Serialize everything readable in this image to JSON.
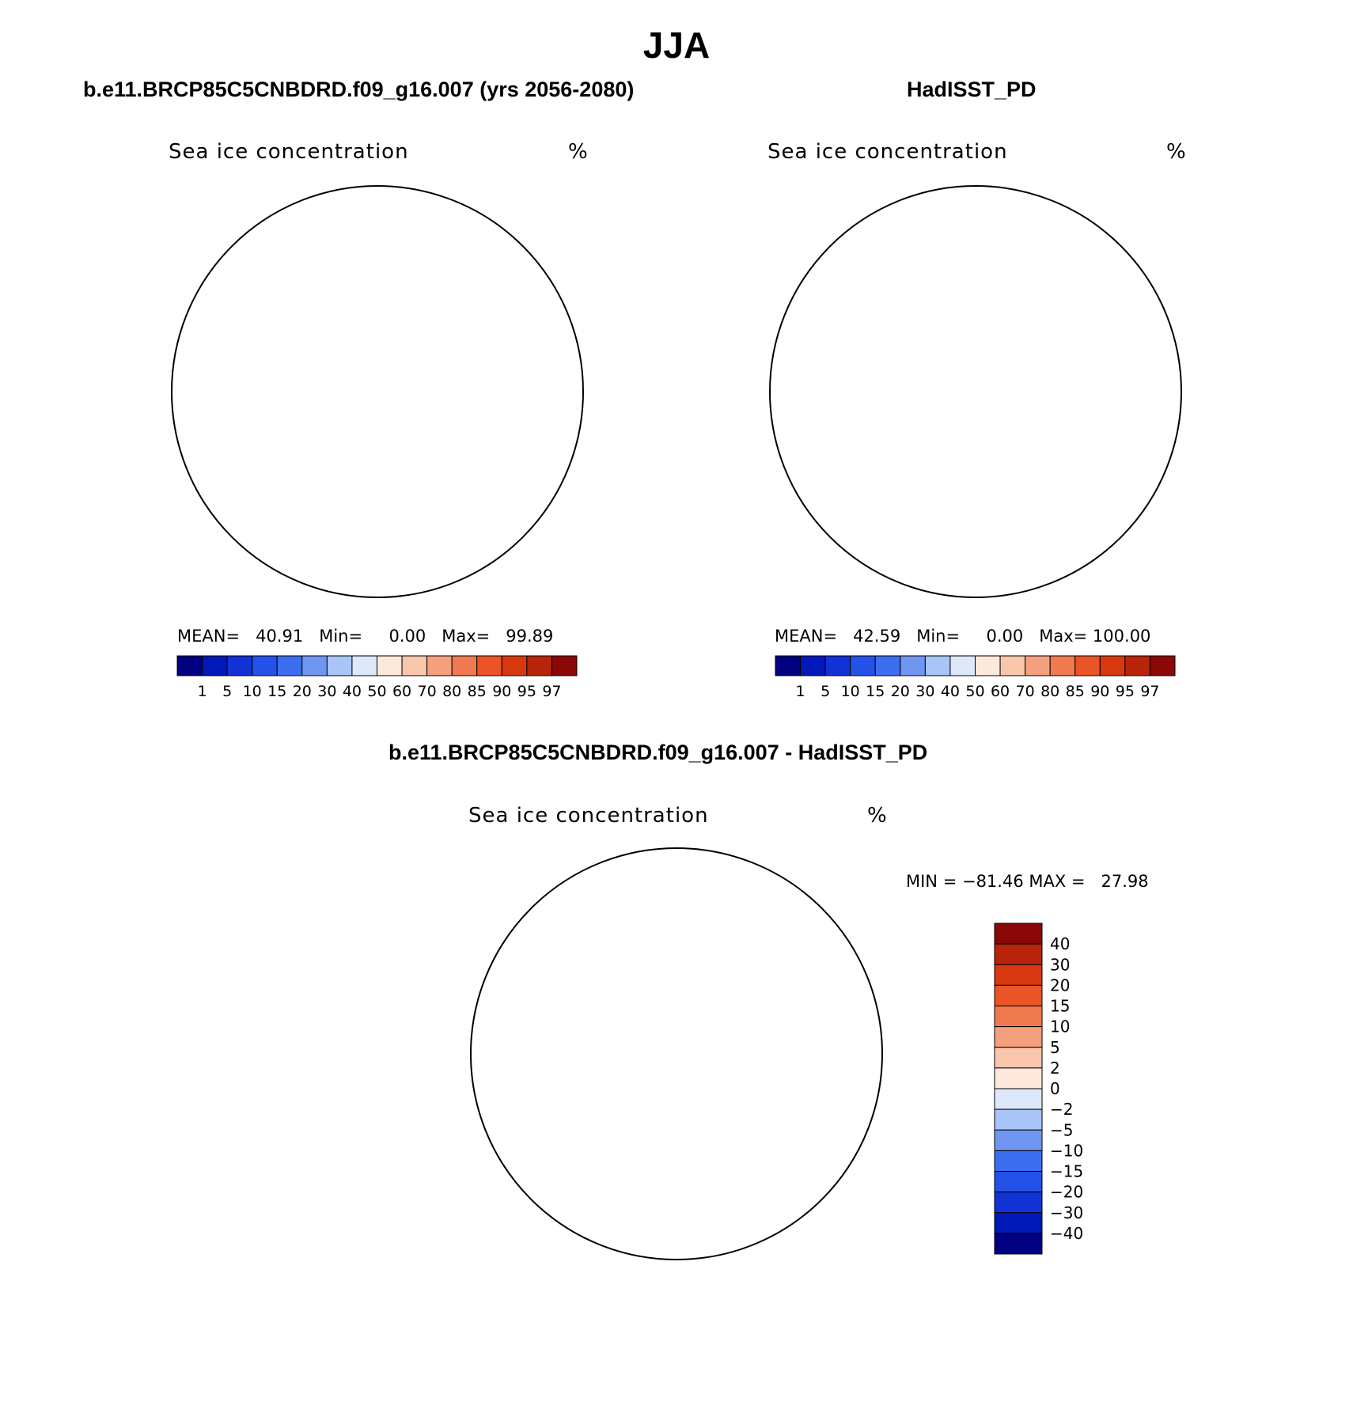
{
  "title": "JJA",
  "colors": {
    "concentration_levels": [
      "#000080",
      "#0019b8",
      "#1133d6",
      "#2451e8",
      "#3d6ef0",
      "#6f97f2",
      "#a9c4f7",
      "#dde9fa",
      "#fde9dc",
      "#f9c6ac",
      "#f5a07c",
      "#f07a4f",
      "#ea5426",
      "#d8380f",
      "#b8250b",
      "#8a0808"
    ],
    "difference_levels": [
      "#000080",
      "#0019b8",
      "#1133d6",
      "#2451e8",
      "#3d6ef0",
      "#6f97f2",
      "#a9c4f7",
      "#dde9fa",
      "#fde9dc",
      "#f9c6ac",
      "#f5a07c",
      "#f07a4f",
      "#ea5426",
      "#d8380f",
      "#b8250b",
      "#8a0808"
    ],
    "land": "#ffffff",
    "coast": "#000000"
  },
  "panels": {
    "model": {
      "title": "b.e11.BRCP85C5CNBDRD.f09_g16.007 (yrs 2056-2080)",
      "variable": "Sea ice concentration",
      "unit": "%",
      "stats": "MEAN=   40.91   Min=     0.00   Max=   99.89"
    },
    "obs": {
      "title": "HadISST_PD",
      "variable": "Sea ice concentration",
      "unit": "%",
      "stats": "MEAN=   42.59   Min=     0.00   Max= 100.00"
    },
    "diff": {
      "title": "b.e11.BRCP85C5CNBDRD.f09_g16.007 - HadISST_PD",
      "variable": "Sea ice concentration",
      "unit": "%",
      "minmax": "MIN = −81.46 MAX =   27.98"
    }
  },
  "colorbars": {
    "concentration_ticks": [
      "1",
      "5",
      "10",
      "15",
      "20",
      "30",
      "40",
      "50",
      "60",
      "70",
      "80",
      "85",
      "90",
      "95",
      "97"
    ],
    "difference_ticks": [
      "40",
      "30",
      "20",
      "15",
      "10",
      "5",
      "2",
      "0",
      "−2",
      "−5",
      "−10",
      "−15",
      "−20",
      "−30",
      "−40"
    ]
  }
}
